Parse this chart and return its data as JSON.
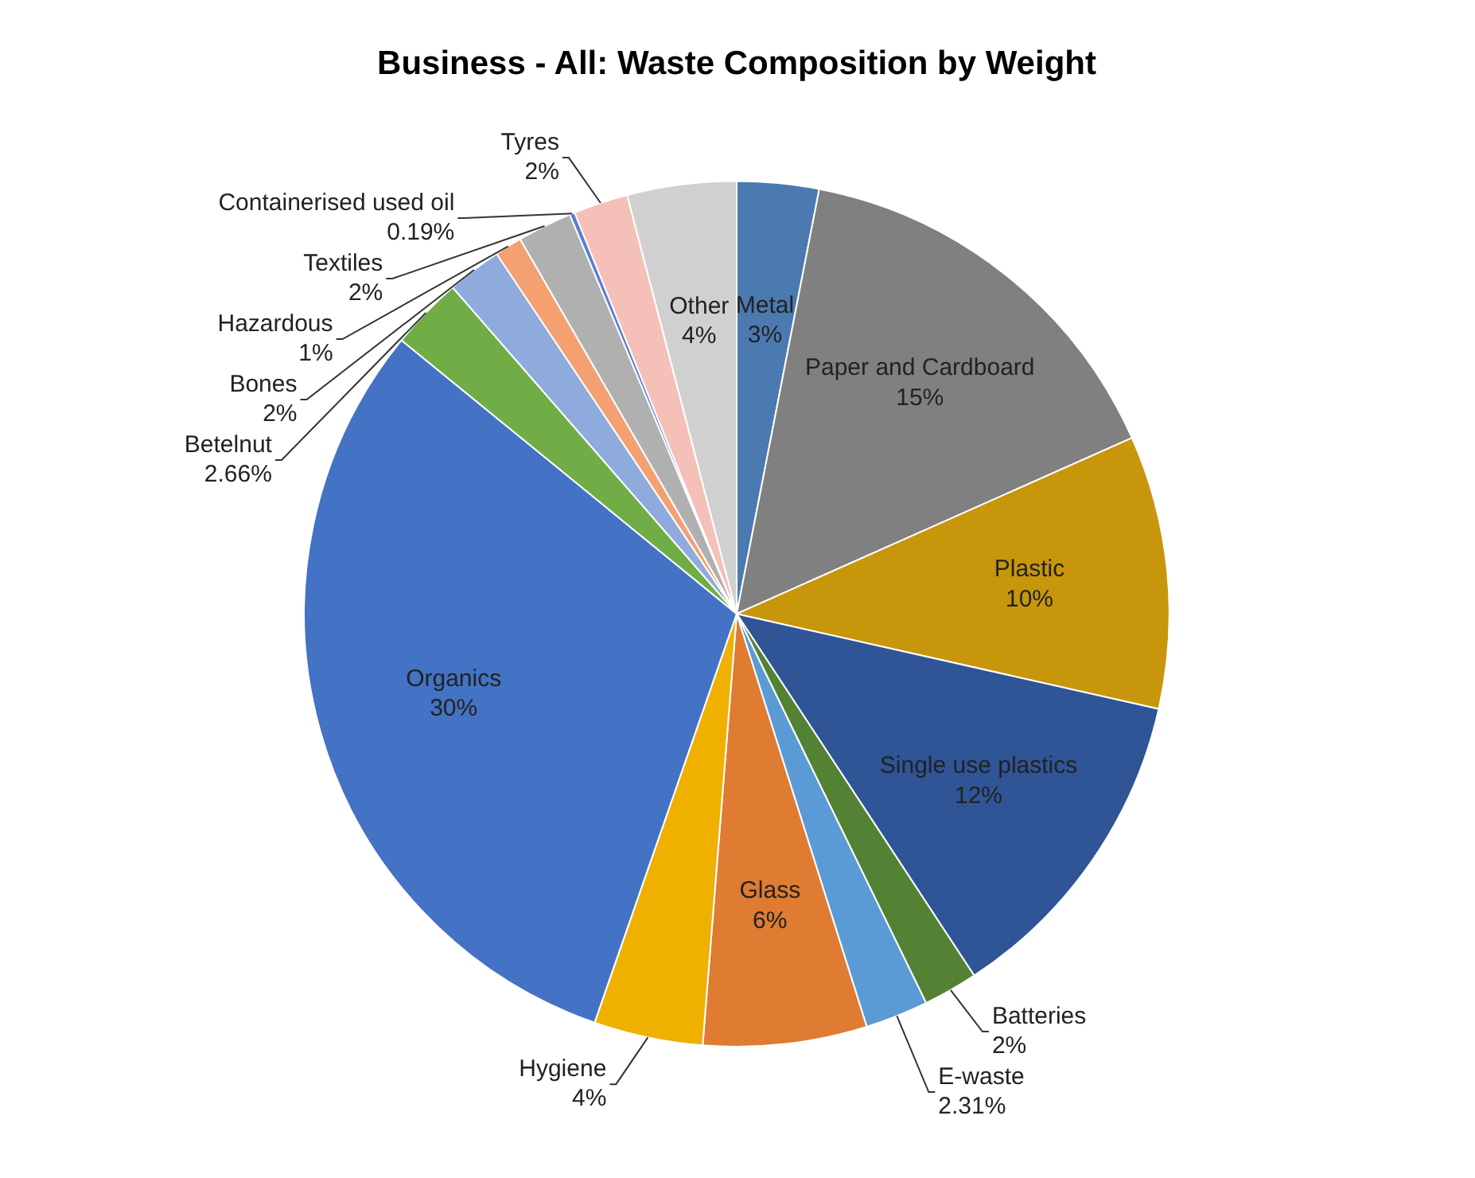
{
  "chart_data": {
    "type": "pie",
    "title": "Business - All: Waste Composition by Weight",
    "categories": [
      "Metal",
      "Paper and Cardboard",
      "Plastic",
      "Single use plastics",
      "Batteries",
      "E-waste",
      "Glass",
      "Hygiene",
      "Organics",
      "Betelnut",
      "Bones",
      "Hazardous",
      "Textiles",
      "Containerised used oil",
      "Tyres",
      "Other"
    ],
    "values": [
      3,
      15,
      10,
      12,
      2,
      2.31,
      6,
      4,
      30,
      2.66,
      2,
      1,
      2,
      0.19,
      2,
      4
    ],
    "colors": [
      "#4a7ab0",
      "#808080",
      "#c8960a",
      "#2f5597",
      "#548235",
      "#5b9bd5",
      "#e07b32",
      "#f0b000",
      "#4472c4",
      "#70ad47",
      "#8faadc",
      "#f4a070",
      "#b0b0b0",
      "#5a7fd0",
      "#f4c0b8",
      "#d0d0d0"
    ],
    "value_labels": [
      "3%",
      "15%",
      "10%",
      "12%",
      "2%",
      "2.31%",
      "6%",
      "4%",
      "30%",
      "2.66%",
      "2%",
      "1%",
      "2%",
      "0.19%",
      "2%",
      "4%"
    ],
    "legend": false
  }
}
